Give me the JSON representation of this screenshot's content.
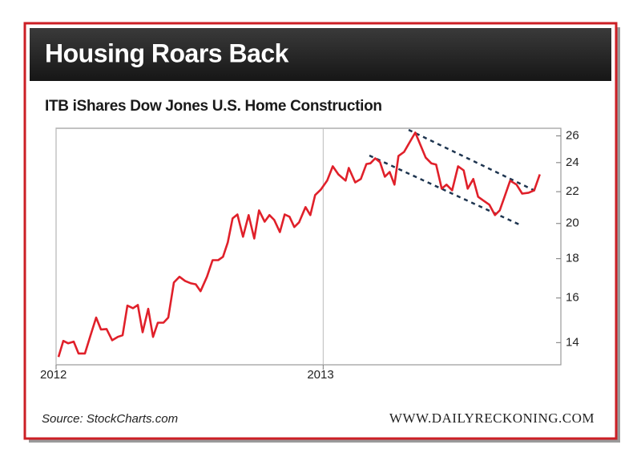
{
  "chart_data": {
    "type": "line",
    "title": "Housing Roars Back",
    "subtitle": "ITB iShares Dow Jones U.S. Home Construction",
    "source": "Source: StockCharts.com",
    "credit": "WWW.DAILYRECKONING.COM",
    "yscale": "log",
    "grid": "x",
    "color": "#e0202a",
    "xlim": [
      2012,
      2013.89
    ],
    "xticks": [
      2012,
      2013
    ],
    "ylim": [
      13.1,
      26.6
    ],
    "yticks": [
      14,
      16,
      18,
      20,
      22,
      24,
      26
    ],
    "x": [
      2012.009,
      2012.027,
      2012.045,
      2012.066,
      2012.084,
      2012.108,
      2012.129,
      2012.15,
      2012.168,
      2012.189,
      2012.21,
      2012.231,
      2012.249,
      2012.267,
      2012.288,
      2012.306,
      2012.324,
      2012.345,
      2012.363,
      2012.381,
      2012.402,
      2012.42,
      2012.441,
      2012.462,
      2012.483,
      2012.505,
      2012.523,
      2012.541,
      2012.565,
      2012.586,
      2012.607,
      2012.625,
      2012.643,
      2012.661,
      2012.679,
      2012.7,
      2012.721,
      2012.742,
      2012.76,
      2012.781,
      2012.799,
      2012.817,
      2012.838,
      2012.856,
      2012.874,
      2012.892,
      2012.91,
      2012.934,
      2012.952,
      2012.97,
      2012.991,
      2013.015,
      2013.036,
      2013.057,
      2013.084,
      2013.096,
      2013.12,
      2013.141,
      2013.162,
      2013.177,
      2013.195,
      2013.213,
      2013.231,
      2013.249,
      2013.267,
      2013.282,
      2013.303,
      2013.324,
      2013.345,
      2013.36,
      2013.384,
      2013.405,
      2013.423,
      2013.444,
      2013.462,
      2013.483,
      2013.505,
      2013.526,
      2013.541,
      2013.562,
      2013.58,
      2013.601,
      2013.622,
      2013.643,
      2013.661,
      2013.679,
      2013.7,
      2013.724,
      2013.745,
      2013.769,
      2013.79,
      2013.811
    ],
    "values": [
      13.41,
      14.07,
      13.97,
      14.04,
      13.55,
      13.55,
      14.31,
      15.09,
      14.56,
      14.58,
      14.1,
      14.24,
      14.31,
      15.64,
      15.52,
      15.67,
      14.44,
      15.49,
      14.24,
      14.86,
      14.86,
      15.09,
      16.76,
      17.05,
      16.84,
      16.72,
      16.67,
      16.33,
      17.05,
      17.92,
      17.92,
      18.1,
      18.9,
      20.31,
      20.55,
      19.22,
      20.51,
      19.12,
      20.8,
      20.11,
      20.51,
      20.21,
      19.49,
      20.55,
      20.41,
      19.79,
      20.07,
      21.01,
      20.51,
      21.78,
      22.13,
      22.74,
      23.74,
      23.17,
      22.74,
      23.62,
      22.62,
      22.85,
      23.9,
      23.95,
      24.31,
      24.03,
      23.01,
      23.34,
      22.47,
      24.48,
      24.78,
      25.51,
      26.26,
      25.51,
      24.36,
      23.95,
      23.86,
      22.2,
      22.47,
      22.09,
      23.74,
      23.45,
      22.2,
      22.85,
      21.67,
      21.41,
      21.16,
      20.51,
      20.8,
      21.67,
      22.74,
      22.47,
      21.87,
      21.93,
      22.09,
      23.17
    ]
  }
}
